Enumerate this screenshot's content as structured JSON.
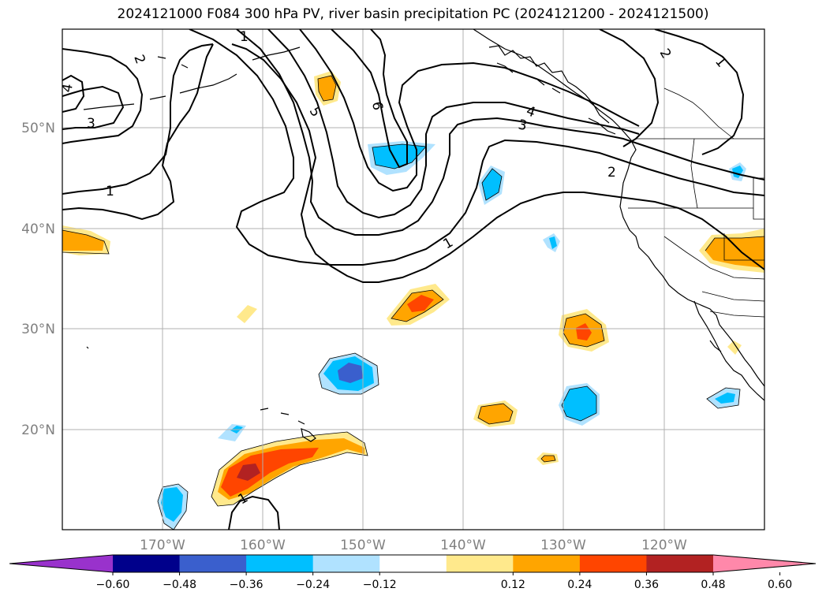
{
  "title": "2024121000 F084 300 hPa PV, river basin precipitation PC (2024121200 - 2024121500)",
  "lat_labels": [
    "50°N",
    "40°N",
    "30°N",
    "20°N"
  ],
  "lon_labels": [
    "170°W",
    "160°W",
    "150°W",
    "140°W",
    "130°W",
    "120°W"
  ],
  "contour_labels": [
    "2",
    "4",
    "3",
    "1",
    "1",
    "5",
    "6",
    "4",
    "3",
    "2",
    "1",
    "2",
    "1",
    "1"
  ],
  "colorbar": {
    "tick_labels": [
      "−0.60",
      "−0.48",
      "−0.36",
      "−0.24",
      "−0.12",
      "0.12",
      "0.24",
      "0.36",
      "0.48",
      "0.60"
    ],
    "colors": [
      "#9932cc",
      "#00008b",
      "#3a5fcd",
      "#00bfff",
      "#b0e2ff",
      "#ffffff",
      "#ffe98c",
      "#ffa500",
      "#ff4500",
      "#b22222",
      "#ff88aa"
    ]
  },
  "palette": {
    "neg_light": "#b0e2ff",
    "neg_mid": "#00bfff",
    "neg_dark": "#3a5fcd",
    "pos_light": "#ffe98c",
    "pos_mid": "#ffa500",
    "pos_high": "#ff4500",
    "pos_top": "#b22222"
  }
}
